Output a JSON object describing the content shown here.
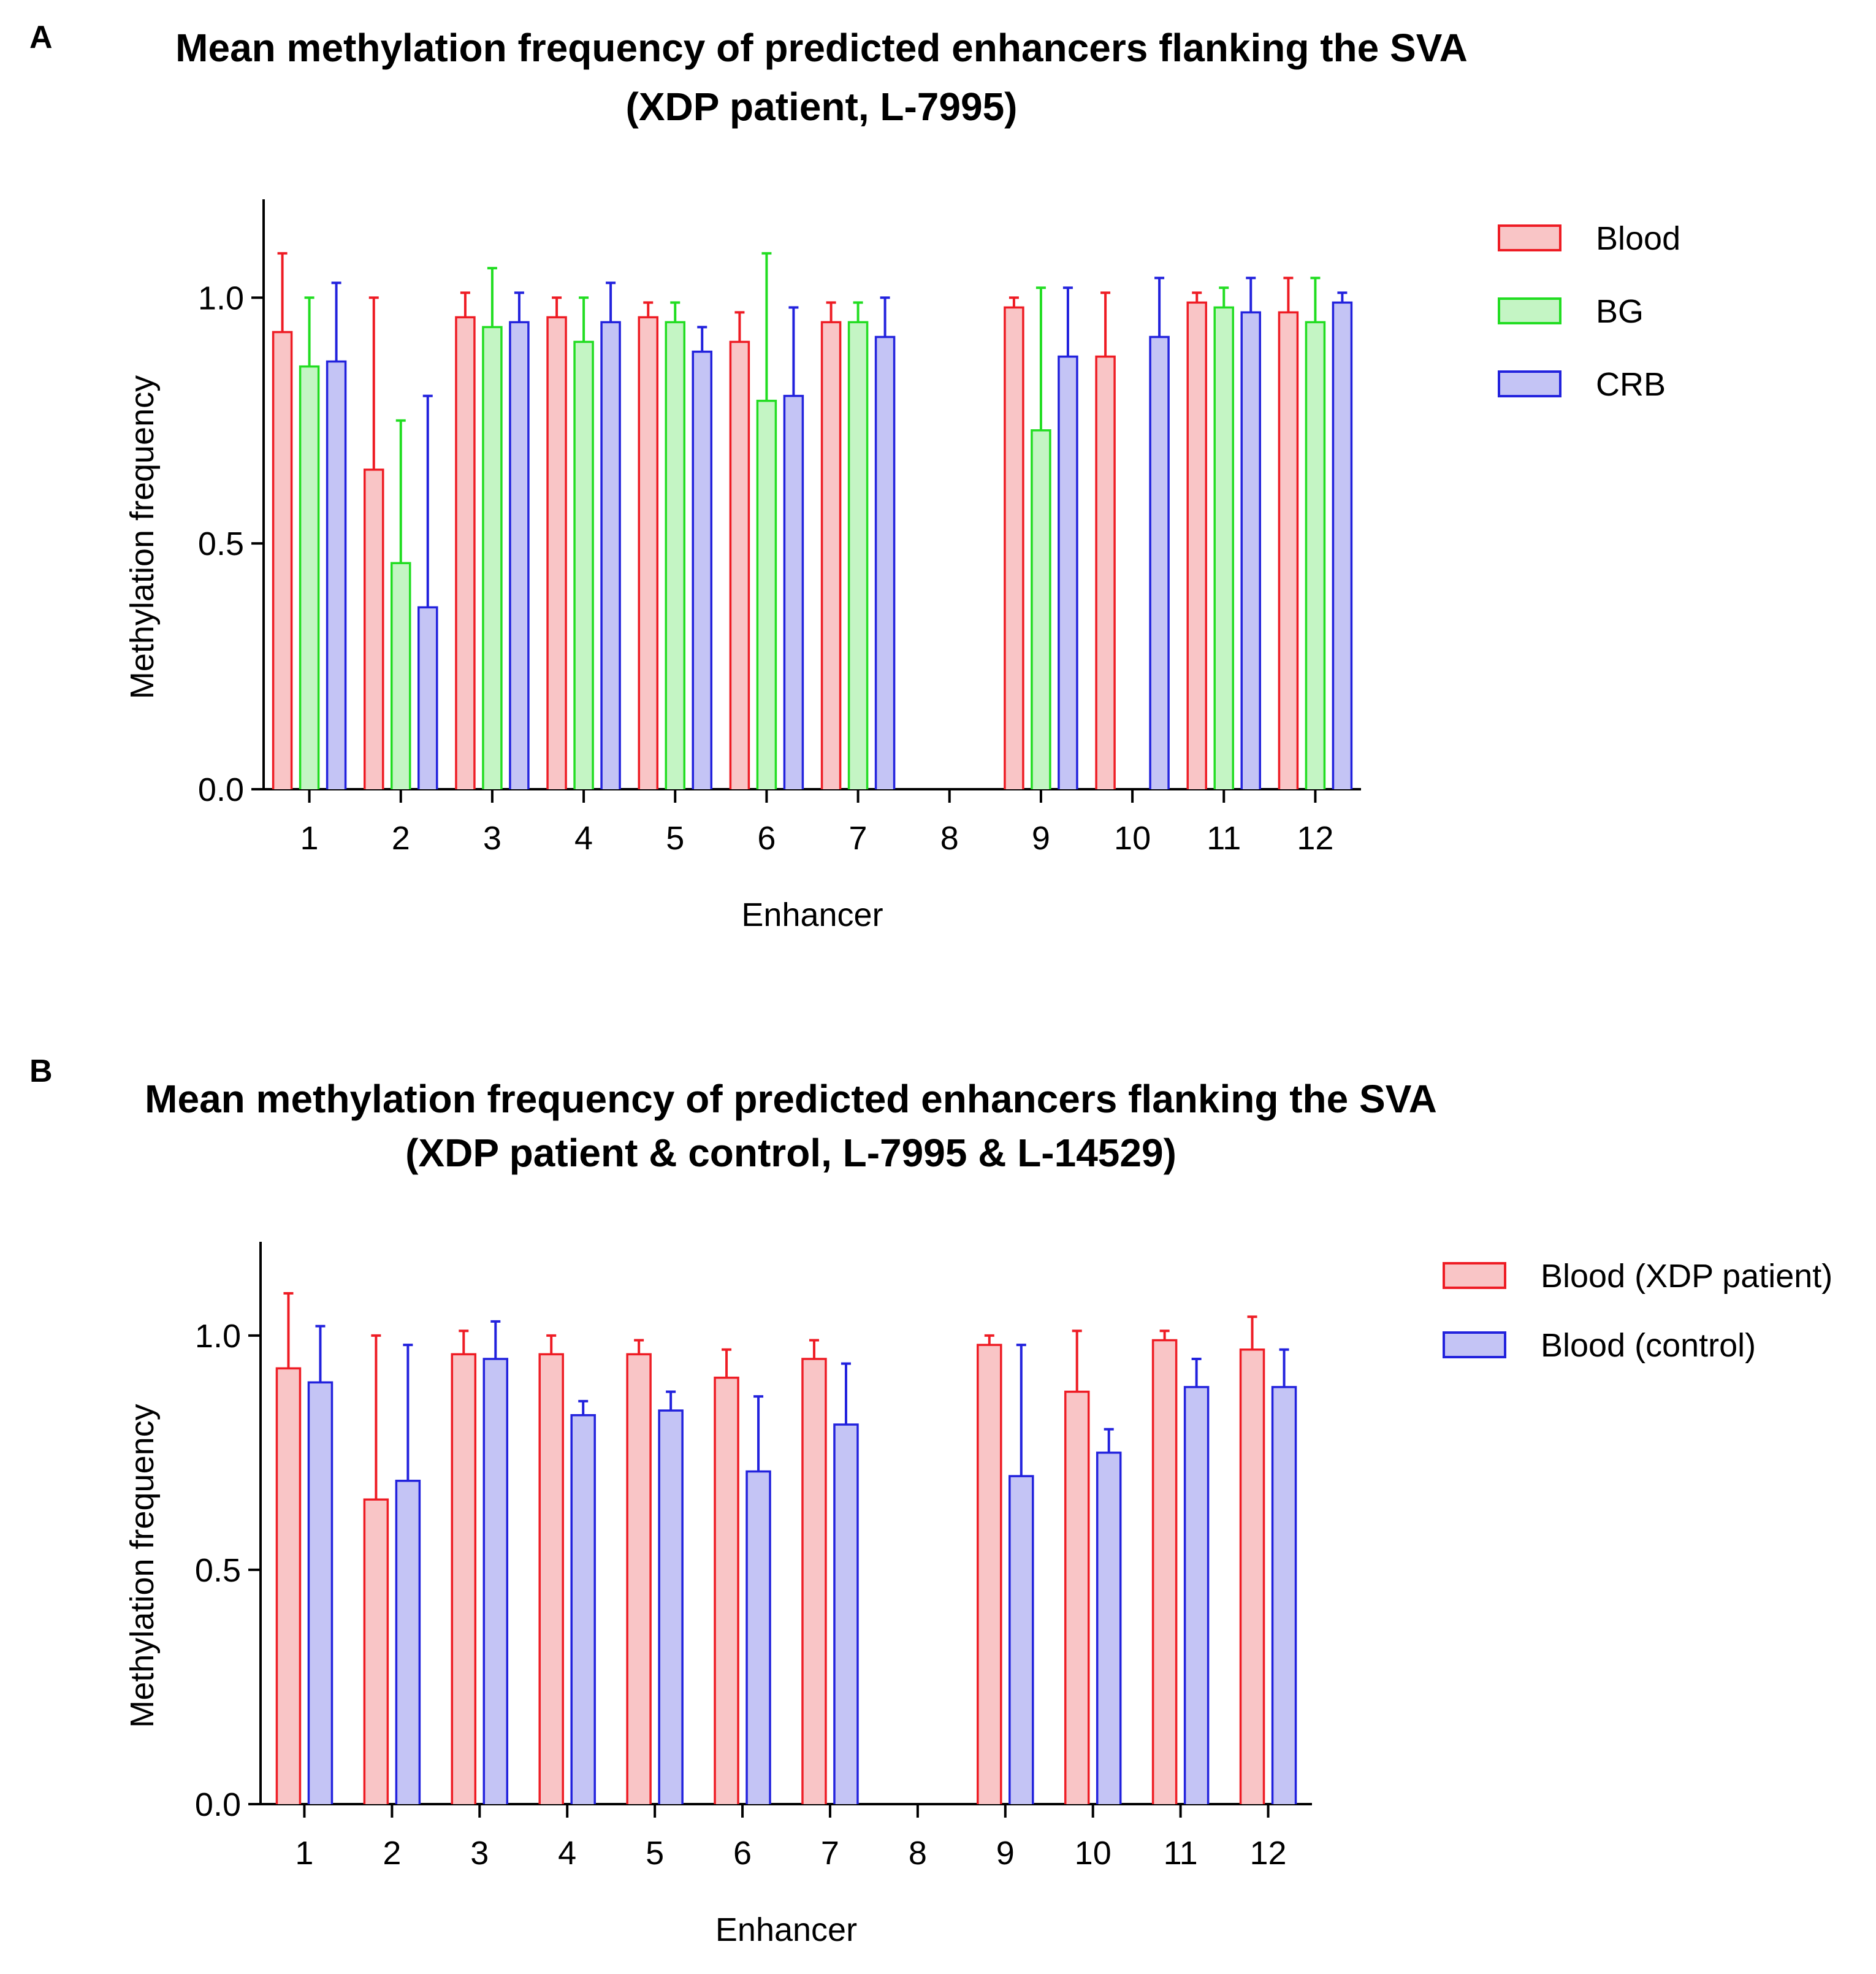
{
  "chart_data": [
    {
      "panel": "A",
      "type": "bar",
      "title_line1": "Mean methylation frequency of predicted enhancers flanking the SVA",
      "title_line2": "(XDP patient, L-7995)",
      "xlabel": "Enhancer",
      "ylabel": "Methylation frequency",
      "ylim": [
        0,
        1.2
      ],
      "yticks": [
        "0.0",
        "0.5",
        "1.0"
      ],
      "categories": [
        "1",
        "2",
        "3",
        "4",
        "5",
        "6",
        "7",
        "8",
        "9",
        "10",
        "11",
        "12"
      ],
      "series": [
        {
          "name": "Blood",
          "fill": "#f9c5c6",
          "stroke": "#ee1c24",
          "values": [
            0.93,
            0.65,
            0.96,
            0.96,
            0.96,
            0.91,
            0.95,
            null,
            0.98,
            0.88,
            0.99,
            0.97
          ],
          "errors": [
            0.16,
            0.35,
            0.05,
            0.04,
            0.03,
            0.06,
            0.04,
            null,
            0.02,
            0.13,
            0.02,
            0.07
          ]
        },
        {
          "name": "BG",
          "fill": "#c4f5c4",
          "stroke": "#22dd22",
          "values": [
            0.86,
            0.46,
            0.94,
            0.91,
            0.95,
            0.79,
            0.95,
            null,
            0.73,
            null,
            0.98,
            0.95
          ],
          "errors": [
            0.14,
            0.29,
            0.12,
            0.09,
            0.04,
            0.3,
            0.04,
            null,
            0.29,
            null,
            0.04,
            0.09
          ]
        },
        {
          "name": "CRB",
          "fill": "#c4c4f5",
          "stroke": "#2222dd",
          "values": [
            0.87,
            0.37,
            0.95,
            0.95,
            0.89,
            0.8,
            0.92,
            null,
            0.88,
            0.92,
            0.97,
            0.99
          ],
          "errors": [
            0.16,
            0.43,
            0.06,
            0.08,
            0.05,
            0.18,
            0.08,
            null,
            0.14,
            0.12,
            0.07,
            0.02
          ]
        }
      ]
    },
    {
      "panel": "B",
      "type": "bar",
      "title_line1": "Mean methylation frequency of predicted enhancers flanking the SVA",
      "title_line2": "(XDP patient  & control, L-7995 & L-14529)",
      "xlabel": "Enhancer",
      "ylabel": "Methylation frequency",
      "ylim": [
        0,
        1.2
      ],
      "yticks": [
        "0.0",
        "0.5",
        "1.0"
      ],
      "categories": [
        "1",
        "2",
        "3",
        "4",
        "5",
        "6",
        "7",
        "8",
        "9",
        "10",
        "11",
        "12"
      ],
      "series": [
        {
          "name": "Blood (XDP patient)",
          "fill": "#f9c5c6",
          "stroke": "#ee1c24",
          "values": [
            0.93,
            0.65,
            0.96,
            0.96,
            0.96,
            0.91,
            0.95,
            null,
            0.98,
            0.88,
            0.99,
            0.97
          ],
          "errors": [
            0.16,
            0.35,
            0.05,
            0.04,
            0.03,
            0.06,
            0.04,
            null,
            0.02,
            0.13,
            0.02,
            0.07
          ]
        },
        {
          "name": "Blood (control)",
          "fill": "#c4c4f5",
          "stroke": "#2222dd",
          "values": [
            0.9,
            0.69,
            0.95,
            0.83,
            0.84,
            0.71,
            0.81,
            null,
            0.7,
            0.75,
            0.89,
            0.89
          ],
          "errors": [
            0.12,
            0.29,
            0.08,
            0.03,
            0.04,
            0.16,
            0.13,
            null,
            0.28,
            0.05,
            0.06,
            0.08
          ]
        }
      ]
    }
  ]
}
